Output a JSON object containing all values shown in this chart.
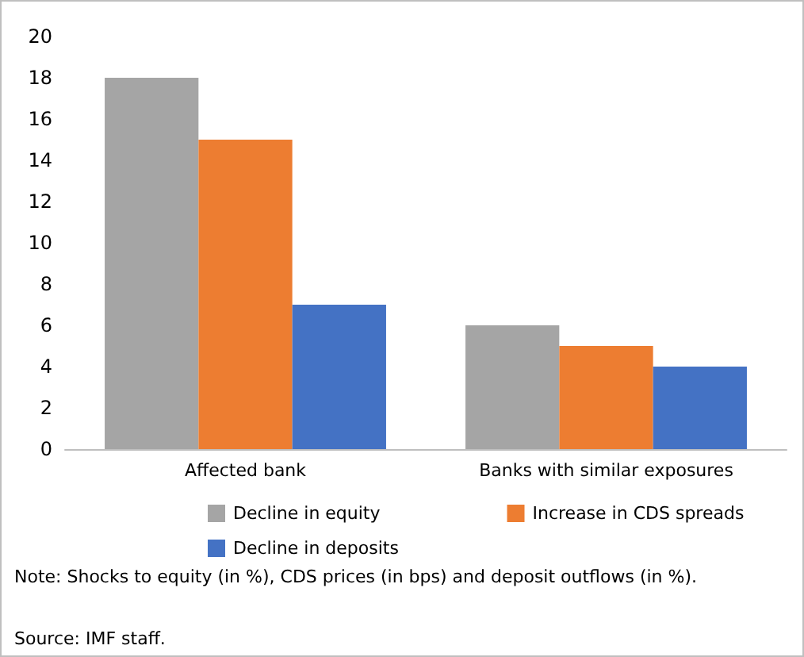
{
  "chart_data": {
    "type": "bar",
    "categories": [
      "Affected bank",
      "Banks with similar exposures"
    ],
    "series": [
      {
        "name": "Decline in equity",
        "color": "#a5a5a5",
        "values": [
          18,
          6
        ]
      },
      {
        "name": "Increase in CDS spreads",
        "color": "#ed7d31",
        "values": [
          15,
          5
        ]
      },
      {
        "name": "Decline in deposits",
        "color": "#4472c4",
        "values": [
          7,
          4
        ]
      }
    ],
    "ylim": [
      0,
      20
    ],
    "yticks": [
      0,
      2,
      4,
      6,
      8,
      10,
      12,
      14,
      16,
      18,
      20
    ],
    "grid": false,
    "legend": "bottom",
    "annotations": [
      "Note: Shocks to equity (in %), CDS prices (in bps) and deposit outflows (in %).",
      "Source: IMF staff."
    ]
  }
}
